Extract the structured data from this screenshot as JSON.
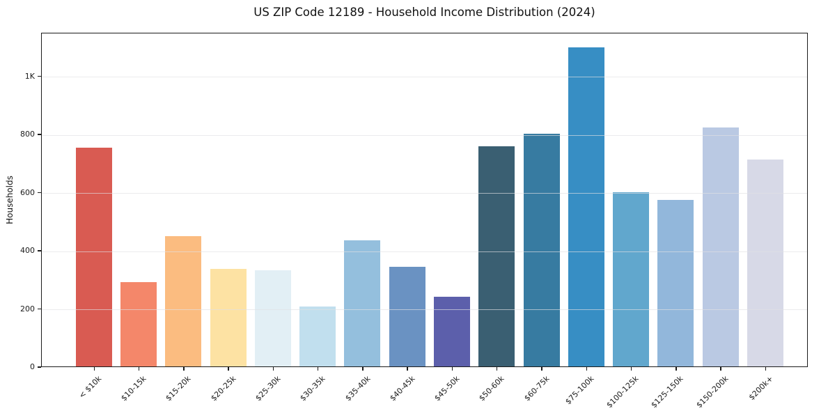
{
  "chart_data": {
    "type": "bar",
    "title": "US ZIP Code 12189 - Household Income Distribution (2024)",
    "xlabel": "",
    "ylabel": "Households",
    "categories": [
      "< $10k",
      "$10-15k",
      "$15-20k",
      "$20-25k",
      "$25-30k",
      "$30-35k",
      "$35-40k",
      "$40-45k",
      "$45-50k",
      "$50-60k",
      "$60-75k",
      "$75-100k",
      "$100-125k",
      "$125-150k",
      "$150-200k",
      "$200k+"
    ],
    "values": [
      752,
      289,
      448,
      336,
      331,
      207,
      433,
      342,
      240,
      757,
      800,
      1097,
      599,
      573,
      821,
      711
    ],
    "bar_colors": [
      "#d95b52",
      "#f4876a",
      "#fbbc80",
      "#fde2a3",
      "#e2eff5",
      "#c1dfee",
      "#94bfdd",
      "#6a92c2",
      "#5c5fab",
      "#3a5f72",
      "#377ba1",
      "#378ec4",
      "#61a7cd",
      "#92b7db",
      "#bac9e3",
      "#d7d9e7"
    ],
    "ylim": [
      0,
      1150
    ],
    "yticks": [
      {
        "value": 0,
        "label": "0"
      },
      {
        "value": 200,
        "label": "200"
      },
      {
        "value": 400,
        "label": "400"
      },
      {
        "value": 600,
        "label": "600"
      },
      {
        "value": 800,
        "label": "800"
      },
      {
        "value": 1000,
        "label": "1K"
      }
    ],
    "grid": "horizontal",
    "legend": "none",
    "background_color": "#ffffff",
    "grid_color": "#e1e1e4"
  }
}
